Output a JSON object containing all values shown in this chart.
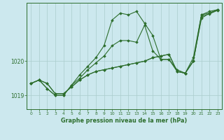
{
  "background_color": "#cce8ee",
  "grid_color": "#aacccc",
  "line_color": "#2d6e2d",
  "marker_color": "#2d6e2d",
  "xlabel": "Graphe pression niveau de la mer (hPa)",
  "xlim": [
    -0.5,
    23.5
  ],
  "ylim": [
    1018.6,
    1021.7
  ],
  "yticks": [
    1019,
    1020
  ],
  "xticks": [
    0,
    1,
    2,
    3,
    4,
    5,
    6,
    7,
    8,
    9,
    10,
    11,
    12,
    13,
    14,
    15,
    16,
    17,
    18,
    19,
    20,
    21,
    22,
    23
  ],
  "series": [
    [
      1019.35,
      1019.45,
      1019.2,
      1019.0,
      1019.0,
      1019.3,
      1019.6,
      1019.85,
      1020.1,
      1020.45,
      1021.2,
      1021.4,
      1021.35,
      1021.45,
      1021.1,
      1020.75,
      1020.05,
      1020.05,
      1019.75,
      1019.65,
      1020.1,
      1021.35,
      1021.45,
      1021.5
    ],
    [
      1019.35,
      1019.45,
      1019.35,
      1019.05,
      1019.05,
      1019.25,
      1019.45,
      1019.6,
      1019.7,
      1019.75,
      1019.8,
      1019.85,
      1019.9,
      1019.95,
      1020.0,
      1020.1,
      1020.15,
      1020.2,
      1019.7,
      1019.65,
      1020.0,
      1021.35,
      1021.4,
      1021.5
    ],
    [
      1019.35,
      1019.45,
      1019.35,
      1019.05,
      1019.05,
      1019.25,
      1019.45,
      1019.6,
      1019.7,
      1019.75,
      1019.8,
      1019.85,
      1019.9,
      1019.95,
      1020.0,
      1020.1,
      1020.15,
      1020.2,
      1019.7,
      1019.65,
      1020.0,
      1021.3,
      1021.38,
      1021.48
    ],
    [
      1019.35,
      1019.45,
      1019.2,
      1019.0,
      1019.0,
      1019.3,
      1019.5,
      1019.75,
      1019.95,
      1020.15,
      1020.45,
      1020.6,
      1020.6,
      1020.55,
      1021.05,
      1020.3,
      1020.05,
      1020.05,
      1019.7,
      1019.65,
      1020.0,
      1021.25,
      1021.4,
      1021.5
    ]
  ]
}
